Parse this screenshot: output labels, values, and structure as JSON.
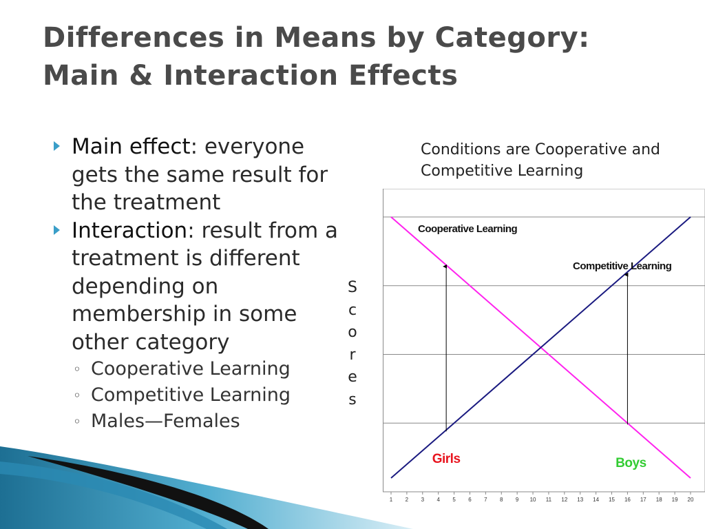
{
  "title": {
    "line1": "Differences in Means by Category:",
    "line2": "Main & Interaction Effects"
  },
  "bullets": [
    {
      "term": "Main effect",
      "text": ": everyone gets the same result for the treatment"
    },
    {
      "term": "Interaction",
      "text": ": result from a treatment is different depending on membership in some other category"
    }
  ],
  "sub_bullets": [
    "Cooperative Learning",
    "Competitive Learning",
    "Males—Females"
  ],
  "caption": "Conditions are Cooperative and Competitive Learning",
  "y_axis_letters": [
    "S",
    "c",
    "o",
    "r",
    "e",
    "s"
  ],
  "colors": {
    "accent": "#3a9ec8",
    "pink": "#ff22ee",
    "navy": "#1a1a80",
    "girls": "#e8141e",
    "boys": "#33cc33"
  },
  "chart_data": {
    "type": "line",
    "x": [
      1,
      20
    ],
    "xticks": [
      1,
      2,
      3,
      4,
      5,
      6,
      7,
      8,
      9,
      10,
      11,
      12,
      13,
      14,
      15,
      16,
      17,
      18,
      19,
      20
    ],
    "yticks": [
      0,
      5,
      10,
      15,
      20
    ],
    "ylim": [
      0,
      20
    ],
    "ylabel": "Scores",
    "grid": true,
    "series": [
      {
        "name": "Cooperative Learning",
        "x": [
          1,
          20
        ],
        "y": [
          20,
          1
        ],
        "color": "#ff22ee"
      },
      {
        "name": "Competitive Learning",
        "x": [
          1,
          20
        ],
        "y": [
          1,
          20
        ],
        "color": "#1a1a80"
      }
    ],
    "annotations": [
      {
        "text": "Cooperative Learning",
        "color": "#111111"
      },
      {
        "text": "Competitive Learning",
        "color": "#111111"
      },
      {
        "text": "Girls",
        "x": 4.5,
        "color": "#e8141e"
      },
      {
        "text": "Boys",
        "x": 16,
        "color": "#33cc33"
      }
    ],
    "arrows": [
      {
        "x": 4.5,
        "y_from": 4.4,
        "y_to": 16.4
      },
      {
        "x": 16,
        "y_from": 4.9,
        "y_to": 15.8
      }
    ]
  }
}
